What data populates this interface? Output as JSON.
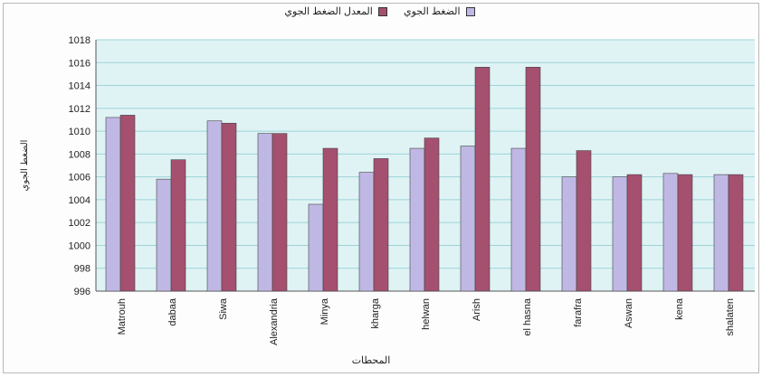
{
  "chart_data": {
    "type": "bar",
    "title": "",
    "xlabel": "المحطات",
    "ylabel": "الضغط الجوي",
    "categories": [
      "Matrouh",
      "dabaa",
      "Siwa",
      "Alexandria",
      "Minya",
      "kharga",
      "helwan",
      "Arish",
      "el hasna",
      "farafra",
      "Aswan",
      "kena",
      "shalaten"
    ],
    "series": [
      {
        "name": "الضغط الجوي",
        "color": "#c0b8e4",
        "values": [
          1011.2,
          1005.8,
          1010.9,
          1009.8,
          1003.6,
          1006.4,
          1008.5,
          1008.7,
          1008.5,
          1006.0,
          1006.0,
          1006.3,
          1006.2
        ]
      },
      {
        "name": "المعدل الضغط الجوي",
        "color": "#a4506e",
        "values": [
          1011.4,
          1007.5,
          1010.7,
          1009.8,
          1008.5,
          1007.6,
          1009.4,
          1015.6,
          1015.6,
          1008.3,
          1006.2,
          1006.2,
          1006.2
        ]
      }
    ],
    "yticks": [
      "1018",
      "1016",
      "1014",
      "1012",
      "1010",
      "1008",
      "1006",
      "1004",
      "1002",
      "1000",
      "998",
      "996"
    ],
    "ylim": [
      996,
      1018
    ],
    "grid": true,
    "legend_position": "top"
  }
}
